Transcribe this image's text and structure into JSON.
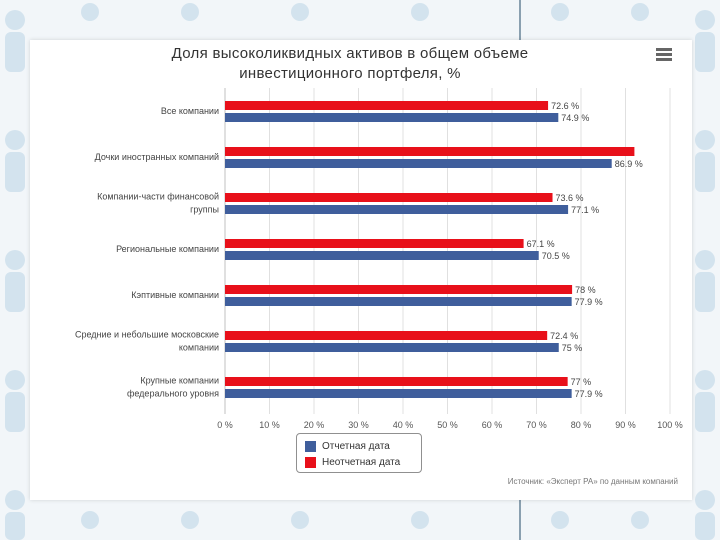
{
  "chart_data": {
    "type": "bar",
    "orientation": "horizontal",
    "title": "Доля высоколиквидных активов в общем объеме инвестиционного портфеля, %",
    "title_lines": [
      "Доля высоколиквидных активов в общем объеме",
      "инвестиционного портфеля, %"
    ],
    "categories": [
      [
        "Все компании"
      ],
      [
        "Дочки иностранных компаний"
      ],
      [
        "Компании-части финансовой",
        "группы"
      ],
      [
        "Региональные компании"
      ],
      [
        "Кэптивные компании"
      ],
      [
        "Средние и небольшие московские",
        "компании"
      ],
      [
        "Крупные компании",
        "федерального уровня"
      ]
    ],
    "series": [
      {
        "name": "Неотчетная дата",
        "color": "#e8101a",
        "values": [
          72.6,
          92,
          73.6,
          67.1,
          78,
          72.4,
          77
        ],
        "labels": [
          "72.6 %",
          "",
          "73.6 %",
          "67.1 %",
          "78 %",
          "72.4 %",
          "77 %"
        ]
      },
      {
        "name": "Отчетная дата",
        "color": "#3f5e9c",
        "values": [
          74.9,
          86.9,
          77.1,
          70.5,
          77.9,
          75,
          77.9
        ],
        "labels": [
          "74.9 %",
          "86.9 %",
          "77.1 %",
          "70.5 %",
          "77.9 %",
          "75 %",
          "77.9 %"
        ]
      }
    ],
    "xlim": [
      0,
      100
    ],
    "xticks": [
      "0 %",
      "10 %",
      "20 %",
      "30 %",
      "40 %",
      "50 %",
      "60 %",
      "70 %",
      "80 %",
      "90 %",
      "100 %"
    ],
    "grid": true,
    "legend_position": "bottom-center"
  },
  "legend": [
    {
      "label": "Отчетная дата",
      "color": "#3f5e9c"
    },
    {
      "label": "Неотчетная дата",
      "color": "#e8101a"
    }
  ],
  "source": "Источник: «Эксперт РА» по данным компаний",
  "colors": {
    "red": "#e8101a",
    "blue": "#3f5e9c",
    "pattern": "#cfe0ec"
  }
}
